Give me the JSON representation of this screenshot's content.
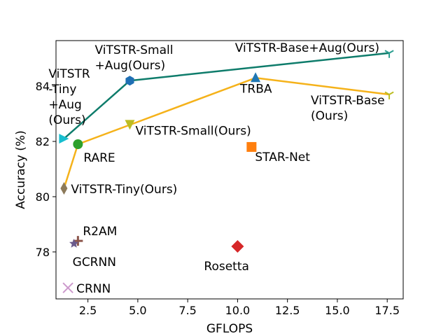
{
  "chart_data": {
    "type": "scatter",
    "xlabel": "GFLOPS",
    "ylabel": "Accuracy (%)",
    "xlim": [
      0.9,
      18.3
    ],
    "ylim": [
      76.3,
      85.65
    ],
    "xticks": [
      2.5,
      5.0,
      7.5,
      10.0,
      12.5,
      15.0,
      17.5
    ],
    "xtick_labels": [
      "2.5",
      "5.0",
      "7.5",
      "10.0",
      "12.5",
      "15.0",
      "17.5"
    ],
    "yticks": [
      78,
      80,
      82,
      84
    ],
    "ytick_labels": [
      "78",
      "80",
      "82",
      "84"
    ],
    "grid": false,
    "lines": [
      {
        "color": "#0e7c6b",
        "points": [
          [
            1.3,
            82.1
          ],
          [
            4.6,
            84.2
          ],
          [
            17.6,
            85.2
          ]
        ]
      },
      {
        "color": "#f5b21a",
        "points": [
          [
            1.3,
            80.3
          ],
          [
            2.0,
            81.9
          ],
          [
            4.6,
            82.6
          ],
          [
            10.9,
            84.3
          ],
          [
            17.6,
            83.7
          ]
        ]
      }
    ],
    "points": [
      {
        "name": "ViTSTR-Tiny+Aug(Ours)",
        "label_lines": [
          "ViTSTR",
          "-Tiny",
          "+Aug",
          "(Ours)"
        ],
        "x": 1.3,
        "y": 82.1,
        "marker": "triangle-right",
        "color": "#17becf"
      },
      {
        "name": "ViTSTR-Small+Aug(Ours)",
        "label_lines": [
          "ViTSTR-Small",
          "+Aug(Ours)"
        ],
        "x": 4.6,
        "y": 84.2,
        "marker": "hexagon",
        "color": "#1f6fb4"
      },
      {
        "name": "ViTSTR-Base+Aug(Ours)",
        "label_lines": [
          "ViTSTR-Base+Aug(Ours)"
        ],
        "x": 17.6,
        "y": 85.2,
        "marker": "tri-down",
        "color": "#2a9d8f"
      },
      {
        "name": "TRBA",
        "label_lines": [
          "TRBA"
        ],
        "x": 10.9,
        "y": 84.3,
        "marker": "triangle-up",
        "color": "#1f77b4"
      },
      {
        "name": "ViTSTR-Base(Ours)",
        "label_lines": [
          "ViTSTR-Base",
          "(Ours)"
        ],
        "x": 17.6,
        "y": 83.7,
        "marker": "tri-down",
        "color": "#bcbd22"
      },
      {
        "name": "ViTSTR-Small(Ours)",
        "label_lines": [
          "ViTSTR-Small(Ours)"
        ],
        "x": 4.6,
        "y": 82.6,
        "marker": "triangle-down",
        "color": "#bcbd22"
      },
      {
        "name": "RARE",
        "label_lines": [
          "RARE"
        ],
        "x": 2.0,
        "y": 81.9,
        "marker": "circle",
        "color": "#2ca02c"
      },
      {
        "name": "STAR-Net",
        "label_lines": [
          "STAR-Net"
        ],
        "x": 10.7,
        "y": 81.8,
        "marker": "square",
        "color": "#ff7f0e"
      },
      {
        "name": "ViTSTR-Tiny(Ours)",
        "label_lines": [
          "ViTSTR-Tiny(Ours)"
        ],
        "x": 1.3,
        "y": 80.3,
        "marker": "thin-diamond",
        "color": "#8c7a5a"
      },
      {
        "name": "R2AM",
        "label_lines": [
          "R2AM"
        ],
        "x": 2.0,
        "y": 78.4,
        "marker": "plus",
        "color": "#8c564b"
      },
      {
        "name": "GCRNN",
        "label_lines": [
          "GCRNN"
        ],
        "x": 1.8,
        "y": 78.3,
        "marker": "star",
        "color": "#6a5a8c"
      },
      {
        "name": "Rosetta",
        "label_lines": [
          "Rosetta"
        ],
        "x": 10.0,
        "y": 78.2,
        "marker": "diamond",
        "color": "#d62728"
      },
      {
        "name": "CRNN",
        "label_lines": [
          "CRNN"
        ],
        "x": 1.5,
        "y": 76.7,
        "marker": "x",
        "color": "#cc99cc"
      }
    ]
  }
}
